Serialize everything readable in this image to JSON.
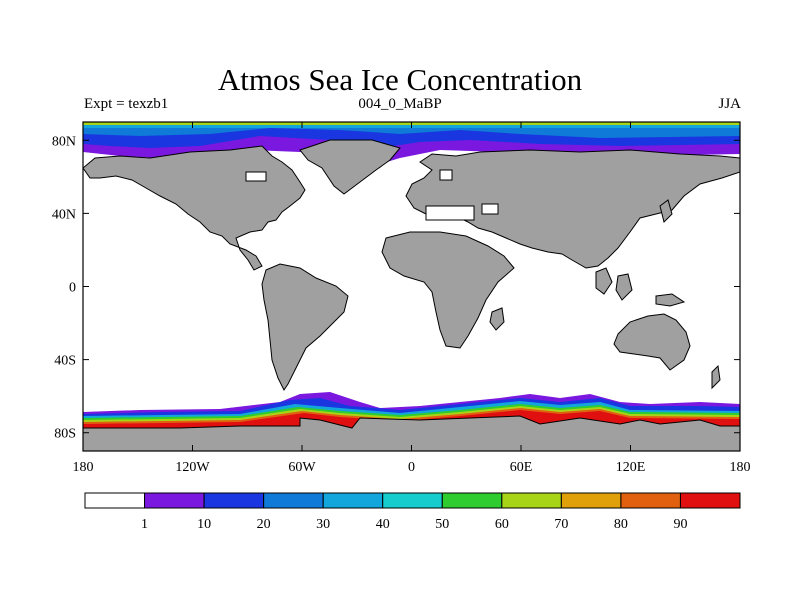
{
  "title": "Atmos Sea Ice Concentration",
  "subtitle_left": "Expt = texzb1",
  "subtitle_center": "004_0_MaBP",
  "subtitle_right": "JJA",
  "map": {
    "lon_range": [
      -180,
      180
    ],
    "lat_range": [
      -90,
      90
    ],
    "land_color": "#a0a0a0",
    "ocean_color": "#ffffff",
    "x_ticks": [
      {
        "lon": -180,
        "label": "180"
      },
      {
        "lon": -120,
        "label": "120W"
      },
      {
        "lon": -60,
        "label": "60W"
      },
      {
        "lon": 0,
        "label": "0"
      },
      {
        "lon": 60,
        "label": "60E"
      },
      {
        "lon": 120,
        "label": "120E"
      },
      {
        "lon": 180,
        "label": "180"
      }
    ],
    "y_ticks": [
      {
        "lat": 80,
        "label": "80N"
      },
      {
        "lat": 40,
        "label": "40N"
      },
      {
        "lat": 0,
        "label": "0"
      },
      {
        "lat": -40,
        "label": "40S"
      },
      {
        "lat": -80,
        "label": "80S"
      }
    ]
  },
  "colorbar": {
    "colors": [
      "#ffffff",
      "#7a18e0",
      "#1a36e0",
      "#0f7ad8",
      "#12a6dc",
      "#16cccc",
      "#2ecc2e",
      "#a8d418",
      "#e0a00a",
      "#e06010",
      "#e01010"
    ],
    "labels": [
      "1",
      "10",
      "20",
      "30",
      "40",
      "50",
      "60",
      "70",
      "80",
      "90"
    ]
  }
}
